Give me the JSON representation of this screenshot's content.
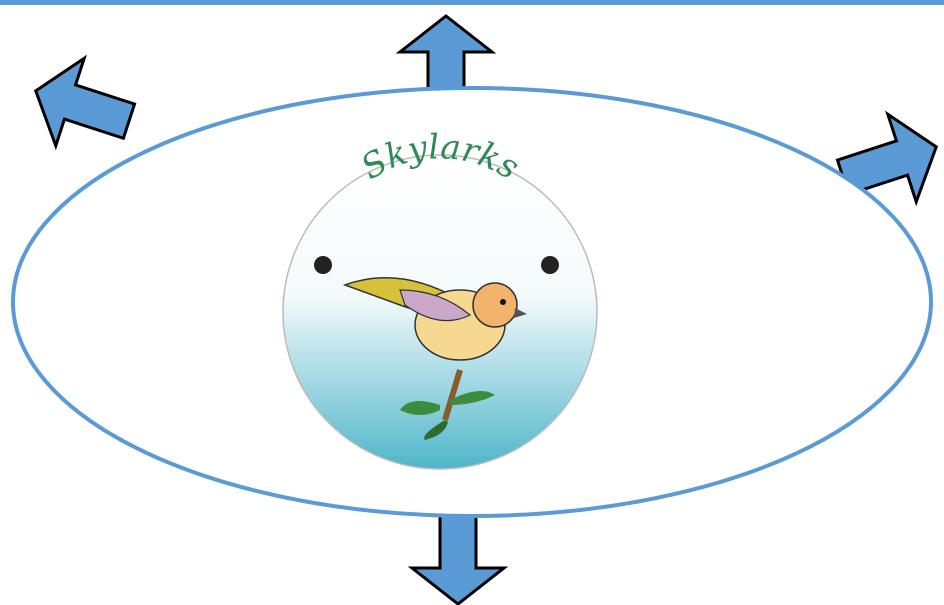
{
  "logo": {
    "text": "Skylarks"
  }
}
